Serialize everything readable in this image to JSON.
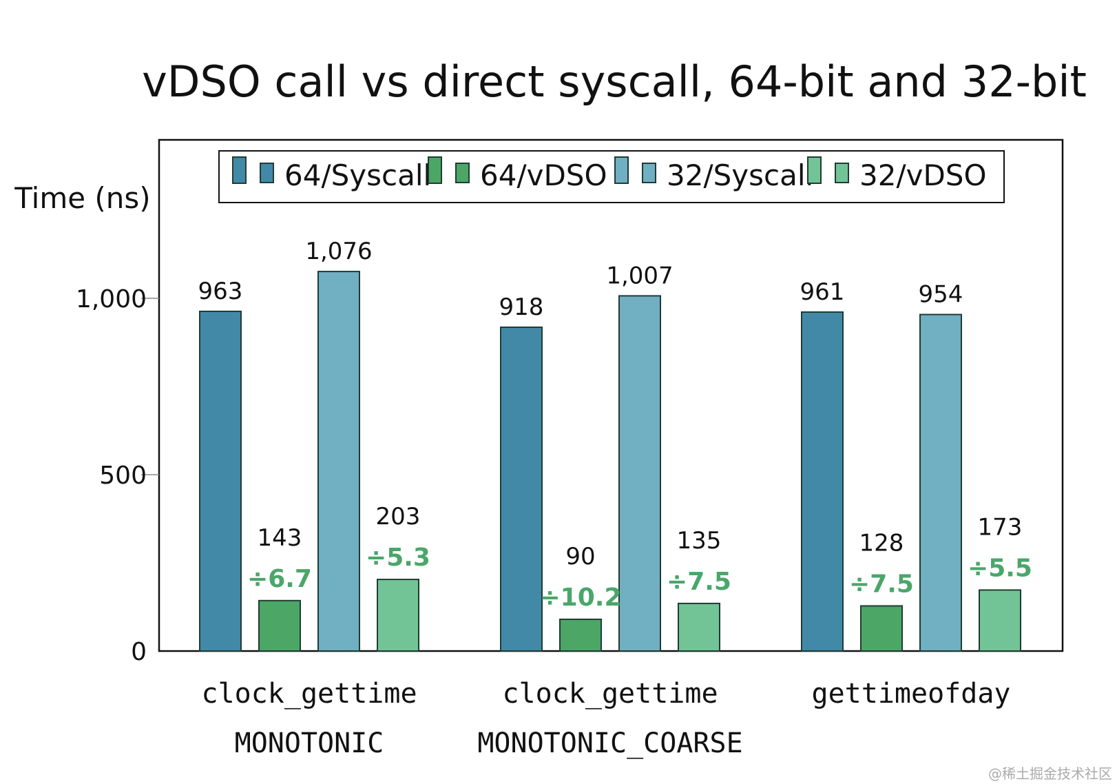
{
  "chart_data": {
    "type": "bar",
    "title": "vDSO call vs direct syscall, 64-bit and 32-bit",
    "ylabel": "Time (ns)",
    "xlabel": "",
    "ylim": [
      0,
      1400
    ],
    "yticks": [
      0,
      500,
      1000
    ],
    "ytick_labels": [
      "0",
      "500",
      "1,000"
    ],
    "grid": false,
    "legend_position": "top",
    "categories": [
      [
        "clock_gettime",
        "MONOTONIC"
      ],
      [
        "clock_gettime",
        "MONOTONIC_COARSE"
      ],
      [
        "gettimeofday"
      ]
    ],
    "series": [
      {
        "name": "64/Syscall",
        "color": "#4289a8",
        "values": [
          963,
          918,
          961
        ],
        "labels": [
          "963",
          "918",
          "961"
        ]
      },
      {
        "name": "64/vDSO",
        "color": "#4ca666",
        "values": [
          143,
          90,
          128
        ],
        "labels": [
          "143",
          "90",
          "128"
        ],
        "ratios": [
          "÷6.7",
          "÷10.2",
          "÷7.5"
        ]
      },
      {
        "name": "32/Syscall",
        "color": "#71afc3",
        "values": [
          1076,
          1007,
          954
        ],
        "labels": [
          "1,076",
          "1,007",
          "954"
        ]
      },
      {
        "name": "32/vDSO",
        "color": "#72c496",
        "values": [
          203,
          135,
          173
        ],
        "labels": [
          "203",
          "135",
          "173"
        ],
        "ratios": [
          "÷5.3",
          "÷7.5",
          "÷5.5"
        ]
      }
    ],
    "ratio_color": "#4aa66a"
  },
  "watermark": "@稀土掘金技术社区"
}
